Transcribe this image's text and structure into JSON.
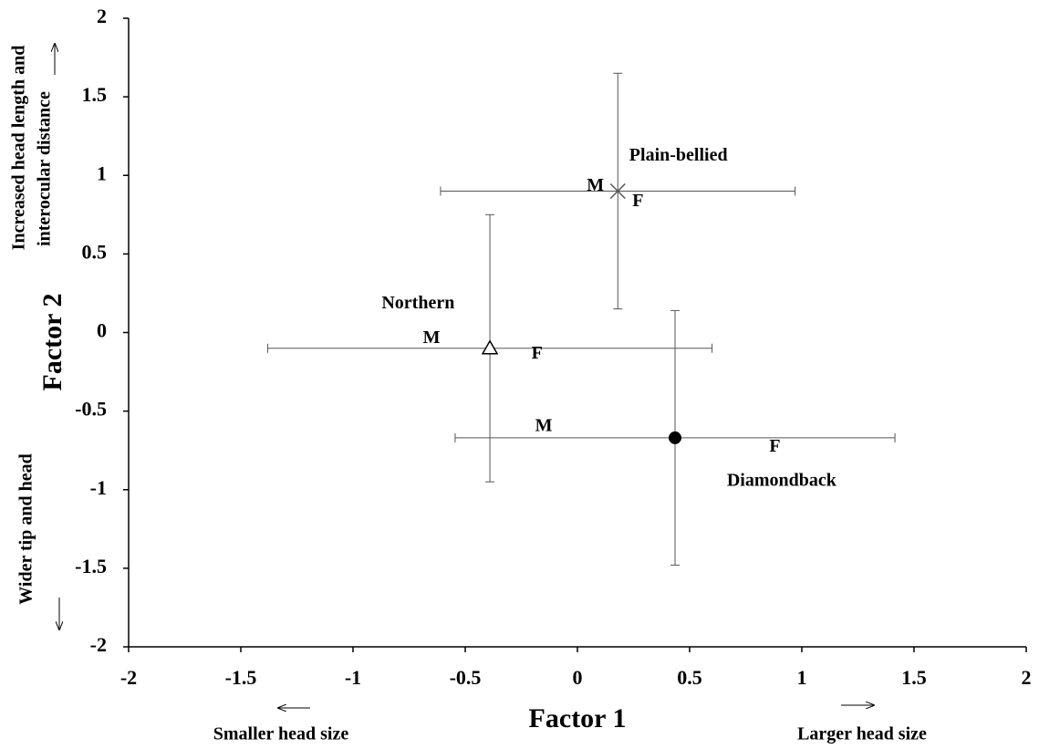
{
  "chart_data": {
    "type": "scatter",
    "x_label": "Factor 1",
    "y_label": "Factor 2",
    "xlim": [
      -2,
      2
    ],
    "ylim": [
      -2,
      2
    ],
    "xticks": [
      -2,
      -1.5,
      -1,
      -0.5,
      0,
      0.5,
      1,
      1.5,
      2
    ],
    "yticks": [
      -2,
      -1.5,
      -1,
      -0.5,
      0,
      0.5,
      1,
      1.5,
      2
    ],
    "x_notes": [
      "Smaller head size",
      "Larger head size"
    ],
    "y_notes": [
      [
        "Increased head length and",
        "interocular distance"
      ],
      [
        "Wider tip and head"
      ]
    ],
    "series": [
      {
        "name": "Plain-bellied",
        "marker": "star",
        "color": "#555555",
        "x": [
          0.18
        ],
        "y": [
          0.9
        ],
        "xerr": [
          0.79
        ],
        "yerr": [
          0.75
        ]
      },
      {
        "name": "Northern",
        "marker": "triangle-open",
        "color": "#000000",
        "x": [
          -0.39
        ],
        "y": [
          -0.1
        ],
        "xerr": [
          0.99
        ],
        "yerr": [
          0.85
        ]
      },
      {
        "name": "Diamondback",
        "marker": "circle",
        "color": "#000000",
        "x": [
          0.435
        ],
        "y": [
          -0.67
        ],
        "xerr": [
          0.98
        ],
        "yerr": [
          0.81
        ]
      }
    ],
    "annotations": [
      {
        "text": "Plain-bellied",
        "x": 0.45,
        "y": 1.12
      },
      {
        "text": "M",
        "x": 0.08,
        "y": 0.93
      },
      {
        "text": "F",
        "x": 0.27,
        "y": 0.83
      },
      {
        "text": "Northern",
        "x": -0.71,
        "y": 0.18
      },
      {
        "text": "M",
        "x": -0.65,
        "y": -0.04
      },
      {
        "text": "F",
        "x": -0.18,
        "y": -0.14
      },
      {
        "text": "M",
        "x": -0.15,
        "y": -0.6
      },
      {
        "text": "F",
        "x": 0.88,
        "y": -0.73
      },
      {
        "text": "Diamondback",
        "x": 0.91,
        "y": -0.95
      }
    ]
  }
}
